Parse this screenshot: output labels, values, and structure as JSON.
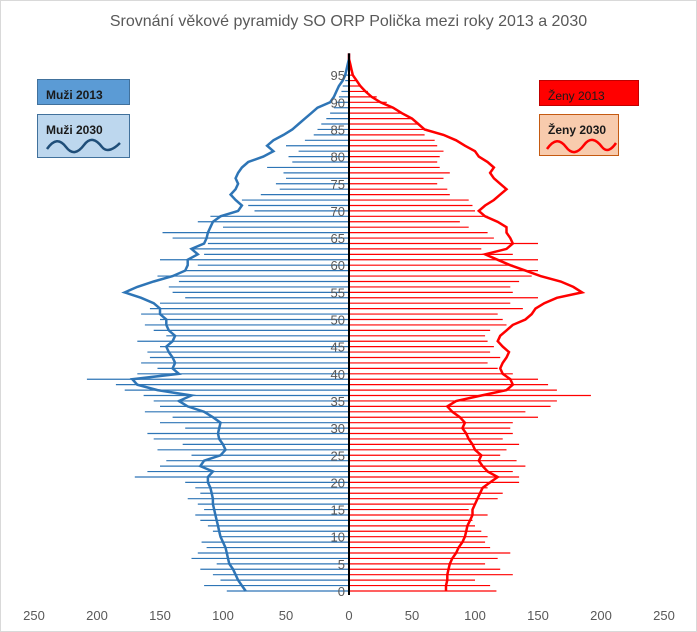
{
  "chart_data": {
    "type": "population-pyramid",
    "title": "Srovnání věkové pyramidy SO ORP Polička mezi roky 2013 a 2030",
    "x_range": [
      -250,
      250
    ],
    "x_ticks": [
      -250,
      -200,
      -150,
      -100,
      -50,
      0,
      50,
      100,
      150,
      200,
      250
    ],
    "x_tick_labels": [
      "250",
      "200",
      "150",
      "100",
      "50",
      "0",
      "50",
      "100",
      "150",
      "200",
      "250"
    ],
    "age_ticks": [
      0,
      5,
      10,
      15,
      20,
      25,
      30,
      35,
      40,
      45,
      50,
      55,
      60,
      65,
      70,
      75,
      80,
      85,
      90,
      95
    ],
    "ages": [
      0,
      1,
      2,
      3,
      4,
      5,
      6,
      7,
      8,
      9,
      10,
      11,
      12,
      13,
      14,
      15,
      16,
      17,
      18,
      19,
      20,
      21,
      22,
      23,
      24,
      25,
      26,
      27,
      28,
      29,
      30,
      31,
      32,
      33,
      34,
      35,
      36,
      37,
      38,
      39,
      40,
      41,
      42,
      43,
      44,
      45,
      46,
      47,
      48,
      49,
      50,
      51,
      52,
      53,
      54,
      55,
      56,
      57,
      58,
      59,
      60,
      61,
      62,
      63,
      64,
      65,
      66,
      67,
      68,
      69,
      70,
      71,
      72,
      73,
      74,
      75,
      76,
      77,
      78,
      79,
      80,
      81,
      82,
      83,
      84,
      85,
      86,
      87,
      88,
      89,
      90,
      91,
      92,
      93,
      94,
      95,
      96,
      97,
      98,
      99
    ],
    "series": [
      {
        "name": "Muži 2013",
        "side": "left",
        "style": "bars",
        "color": "#2e75b6",
        "values": [
          97,
          115,
          102,
          108,
          118,
          105,
          125,
          120,
          113,
          117,
          102,
          108,
          112,
          118,
          122,
          115,
          120,
          128,
          118,
          122,
          130,
          170,
          160,
          150,
          145,
          125,
          152,
          132,
          155,
          160,
          130,
          150,
          140,
          162,
          150,
          155,
          163,
          178,
          185,
          208,
          168,
          152,
          165,
          158,
          160,
          150,
          168,
          145,
          155,
          162,
          150,
          165,
          158,
          150,
          130,
          140,
          143,
          135,
          152,
          130,
          120,
          150,
          115,
          125,
          112,
          140,
          148,
          100,
          120,
          110,
          75,
          80,
          85,
          70,
          55,
          58,
          50,
          52,
          65,
          45,
          48,
          40,
          50,
          35,
          28,
          25,
          22,
          18,
          15,
          12,
          10,
          8,
          6,
          5,
          3,
          2,
          1,
          1,
          0,
          0
        ]
      },
      {
        "name": "Muži 2030",
        "side": "left",
        "style": "line",
        "color": "#2e75b6",
        "values": [
          82,
          85,
          88,
          90,
          92,
          95,
          96,
          97,
          98,
          100,
          102,
          103,
          104,
          105,
          106,
          107,
          108,
          108,
          109,
          110,
          112,
          112,
          108,
          118,
          115,
          102,
          98,
          100,
          103,
          104,
          103,
          102,
          108,
          115,
          128,
          135,
          125,
          152,
          168,
          172,
          135,
          140,
          138,
          140,
          143,
          145,
          140,
          138,
          143,
          145,
          145,
          150,
          150,
          155,
          165,
          178,
          168,
          155,
          140,
          130,
          128,
          128,
          120,
          125,
          115,
          113,
          112,
          110,
          108,
          102,
          88,
          85,
          90,
          94,
          90,
          88,
          90,
          88,
          85,
          80,
          68,
          60,
          65,
          60,
          52,
          45,
          40,
          35,
          30,
          25,
          15,
          12,
          10,
          8,
          5,
          3,
          2,
          1,
          0,
          0
        ]
      },
      {
        "name": "Ženy 2013",
        "side": "right",
        "style": "bars",
        "color": "#ff0000",
        "values": [
          117,
          112,
          100,
          130,
          120,
          108,
          118,
          128,
          112,
          108,
          110,
          105,
          100,
          98,
          110,
          95,
          100,
          118,
          122,
          110,
          135,
          135,
          130,
          140,
          133,
          120,
          125,
          135,
          122,
          130,
          128,
          130,
          150,
          140,
          160,
          165,
          192,
          165,
          158,
          150,
          130,
          118,
          110,
          120,
          112,
          115,
          110,
          108,
          112,
          125,
          122,
          118,
          138,
          128,
          150,
          130,
          128,
          135,
          145,
          150,
          130,
          150,
          130,
          105,
          150,
          115,
          110,
          95,
          88,
          110,
          100,
          98,
          95,
          80,
          78,
          70,
          75,
          80,
          72,
          70,
          72,
          75,
          70,
          68,
          60,
          62,
          55,
          50,
          42,
          35,
          30,
          22,
          15,
          10,
          6,
          3,
          2,
          1,
          0,
          0
        ]
      },
      {
        "name": "Ženy 2030",
        "side": "right",
        "style": "line",
        "color": "#ff0000",
        "values": [
          77,
          77,
          78,
          78,
          79,
          80,
          82,
          85,
          87,
          90,
          92,
          93,
          94,
          96,
          98,
          98,
          100,
          102,
          104,
          106,
          112,
          118,
          110,
          106,
          103,
          105,
          100,
          98,
          95,
          93,
          90,
          92,
          88,
          82,
          78,
          85,
          105,
          125,
          130,
          128,
          122,
          120,
          122,
          125,
          127,
          122,
          118,
          120,
          125,
          130,
          140,
          145,
          148,
          155,
          165,
          185,
          178,
          168,
          152,
          140,
          128,
          118,
          108,
          125,
          130,
          128,
          125,
          125,
          118,
          108,
          103,
          108,
          115,
          120,
          125,
          120,
          115,
          112,
          115,
          110,
          103,
          100,
          92,
          85,
          75,
          60,
          55,
          50,
          42,
          35,
          25,
          18,
          13,
          9,
          6,
          3,
          2,
          1,
          0,
          0
        ]
      }
    ]
  },
  "legend": [
    {
      "label": "Muži 2013"
    },
    {
      "label": "Muži 2030"
    },
    {
      "label": "Ženy 2013"
    },
    {
      "label": "Ženy 2030"
    }
  ]
}
